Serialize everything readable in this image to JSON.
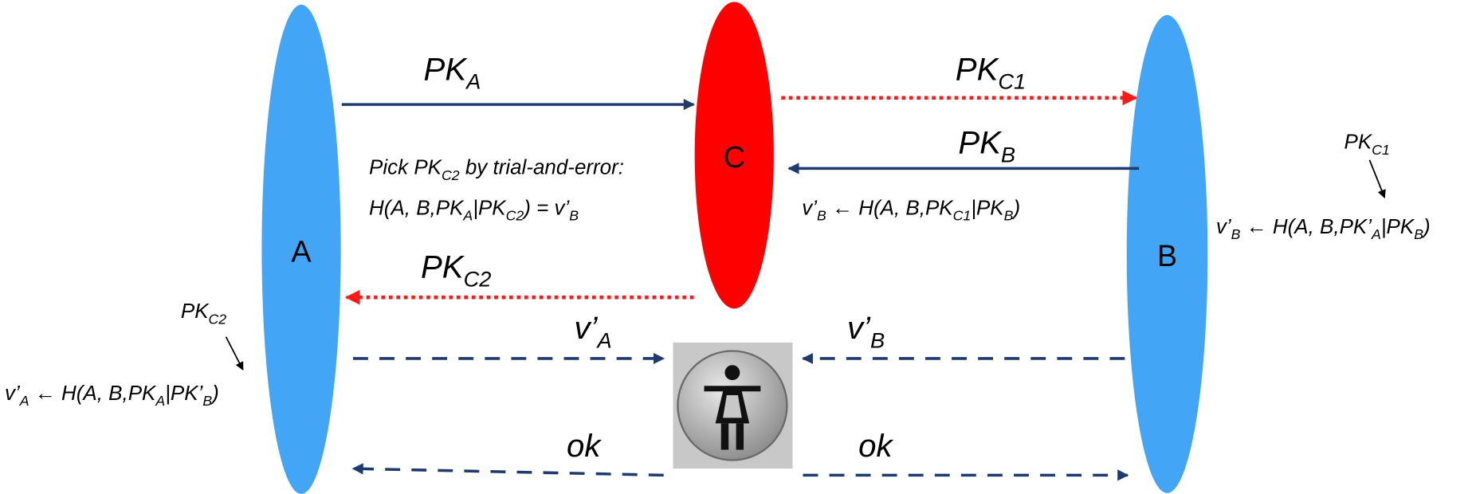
{
  "nodes": {
    "a": "A",
    "c": "C",
    "b": "B"
  },
  "labels": [
    [
      {
        "t": "PK"
      },
      {
        "s": "A"
      }
    ],
    [
      {
        "t": "PK"
      },
      {
        "s": "C1"
      }
    ],
    [
      {
        "t": "PK"
      },
      {
        "s": "B"
      }
    ],
    [
      {
        "t": "PK"
      },
      {
        "s": "C2"
      }
    ],
    [
      {
        "t": "v’"
      },
      {
        "s": "A"
      }
    ],
    [
      {
        "t": "v’"
      },
      {
        "s": "B"
      }
    ],
    [
      {
        "t": "ok"
      }
    ],
    [
      {
        "t": "ok"
      }
    ],
    [
      {
        "t": "Pick PK"
      },
      {
        "s": "C2"
      },
      {
        "t": " by trial-and-error:"
      }
    ],
    [
      {
        "t": "H(A, B,PK"
      },
      {
        "s": "A"
      },
      {
        "t": "|PK"
      },
      {
        "s": "C2"
      },
      {
        "t": ") = v’"
      },
      {
        "s": "B"
      }
    ],
    [
      {
        "t": "v’"
      },
      {
        "s": "B"
      },
      {
        "t": " ← H(A, B,PK"
      },
      {
        "s": "C1"
      },
      {
        "t": "|PK"
      },
      {
        "s": "B"
      },
      {
        "t": ")"
      }
    ],
    [
      {
        "t": "PK"
      },
      {
        "s": "C1"
      }
    ],
    [
      {
        "t": "v’"
      },
      {
        "s": "B"
      },
      {
        "t": " ← H(A, B,PK’"
      },
      {
        "s": "A"
      },
      {
        "t": "|PK"
      },
      {
        "s": "B"
      },
      {
        "t": ")"
      }
    ],
    [
      {
        "t": "PK"
      },
      {
        "s": "C2"
      }
    ],
    [
      {
        "t": "v’"
      },
      {
        "s": "A"
      },
      {
        "t": " ← H(A, B,PK"
      },
      {
        "s": "A"
      },
      {
        "t": "|PK’"
      },
      {
        "s": "B"
      },
      {
        "t": ")"
      }
    ]
  ]
}
